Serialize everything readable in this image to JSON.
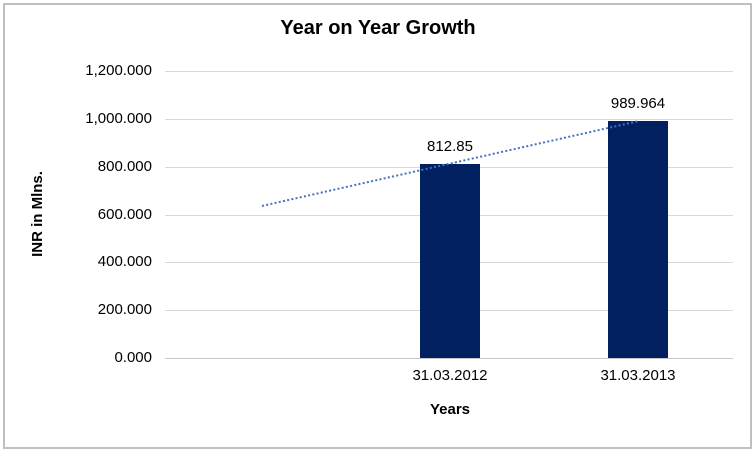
{
  "chart_data": {
    "type": "bar",
    "title": "Year on Year Growth",
    "xlabel": "Years",
    "ylabel": "INR in Mlns.",
    "categories": [
      "31.03.2012",
      "31.03.2013"
    ],
    "series": [
      {
        "name": "INR in Mlns.",
        "values": [
          812.85,
          989.964
        ]
      }
    ],
    "values": [
      812.85,
      989.964
    ],
    "value_labels": [
      "812.85",
      "989.964"
    ],
    "ylim": [
      0,
      1200
    ],
    "yticks": [
      0,
      200,
      400,
      600,
      800,
      1000,
      1200
    ],
    "ytick_labels": [
      "0.000",
      "200.000",
      "400.000",
      "600.000",
      "800.000",
      "1,000.000",
      "1,200.000"
    ],
    "grid": true,
    "legend": "none",
    "trendline": {
      "kind": "linear",
      "style": "dotted",
      "color": "#4472C4",
      "extends_back_periods": 1,
      "estimated_start_value": 635.7,
      "end_value": 989.964
    },
    "colors": {
      "bar": "#002060",
      "trendline": "#4472C4",
      "gridline": "#d9d9d9",
      "axis_line": "#c8c6c6",
      "text": "#000000",
      "background": "#ffffff",
      "border": "#bfbfbf"
    }
  }
}
